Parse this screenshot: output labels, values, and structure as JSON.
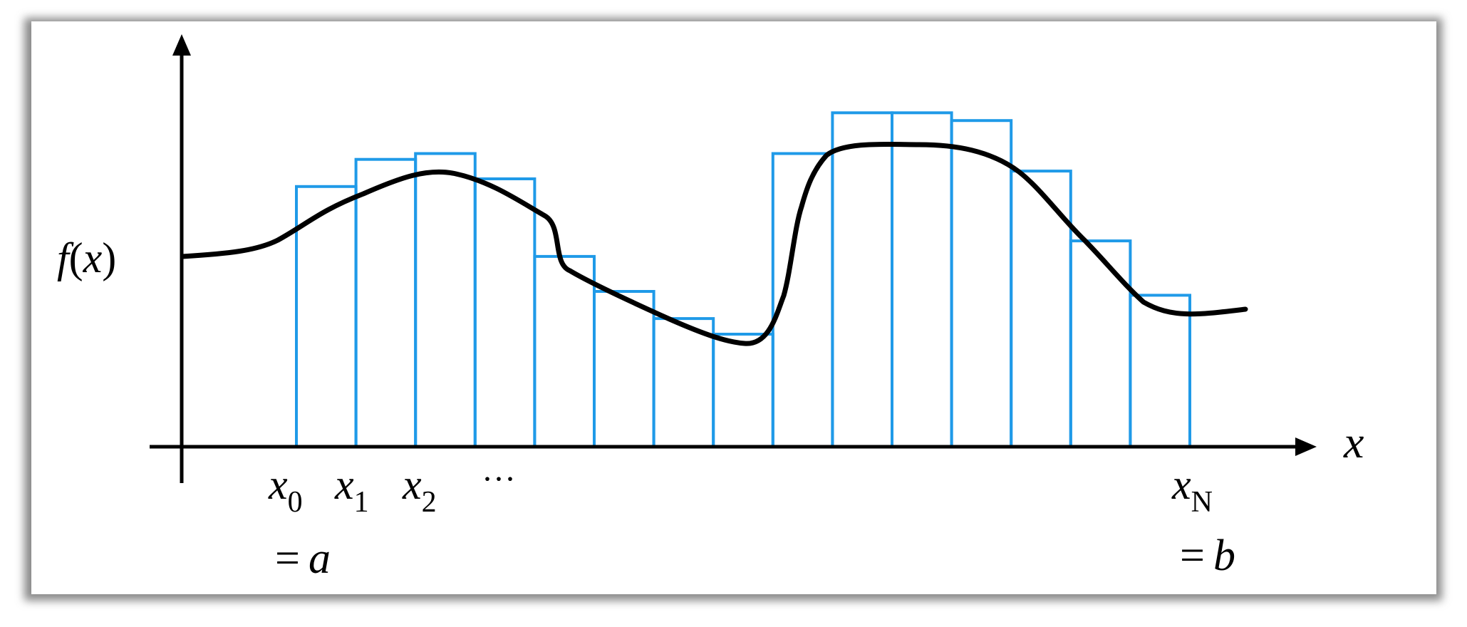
{
  "diagram": {
    "y_label": {
      "func": "f",
      "open": "(",
      "var": "x",
      "close": ")"
    },
    "x_label": "x",
    "tick_labels": [
      {
        "base": "x",
        "sub": "0"
      },
      {
        "base": "x",
        "sub": "1"
      },
      {
        "base": "x",
        "sub": "2"
      }
    ],
    "ellipsis": "···",
    "last_tick": {
      "base": "x",
      "sub": "N"
    },
    "endpoint_a": {
      "eq": "=",
      "sym": "a"
    },
    "endpoint_b": {
      "eq": "=",
      "sym": "b"
    },
    "bar_heights": [
      0.67,
      0.74,
      0.755,
      0.69,
      0.49,
      0.4,
      0.33,
      0.29,
      0.755,
      0.86,
      0.86,
      0.84,
      0.71,
      0.53,
      0.39
    ],
    "colors": {
      "bars": "#1f9ae8",
      "curve": "#000000",
      "axes": "#000000"
    }
  }
}
